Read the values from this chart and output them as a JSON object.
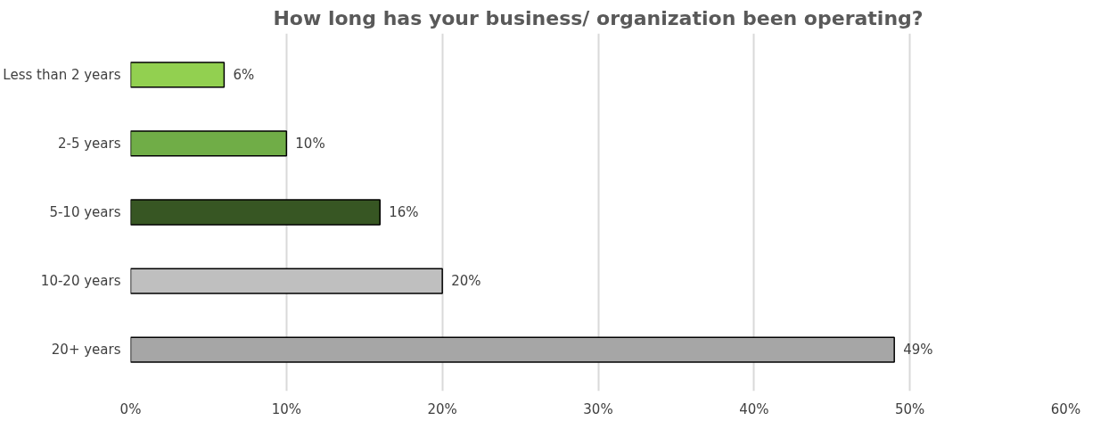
{
  "chart_data": {
    "type": "bar",
    "orientation": "horizontal",
    "title": "How long has your business/ organization been operating?",
    "categories": [
      "Less than 2 years",
      "2-5 years",
      "5-10 years",
      "10-20 years",
      "20+ years"
    ],
    "values": [
      6,
      10,
      16,
      20,
      49
    ],
    "colors": [
      "#92d050",
      "#70ad47",
      "#375623",
      "#bfbfbf",
      "#a6a6a6"
    ],
    "value_labels": [
      "6%",
      "10%",
      "16%",
      "20%",
      "49%"
    ],
    "xlim": [
      0,
      60
    ],
    "xticks": [
      {
        "value": 0,
        "label": "0%"
      },
      {
        "value": 10,
        "label": "10%"
      },
      {
        "value": 20,
        "label": "20%"
      },
      {
        "value": 30,
        "label": "30%"
      },
      {
        "value": 40,
        "label": "40%"
      },
      {
        "value": 50,
        "label": "50%"
      },
      {
        "value": 60,
        "label": "60%"
      }
    ],
    "grid": "x"
  }
}
